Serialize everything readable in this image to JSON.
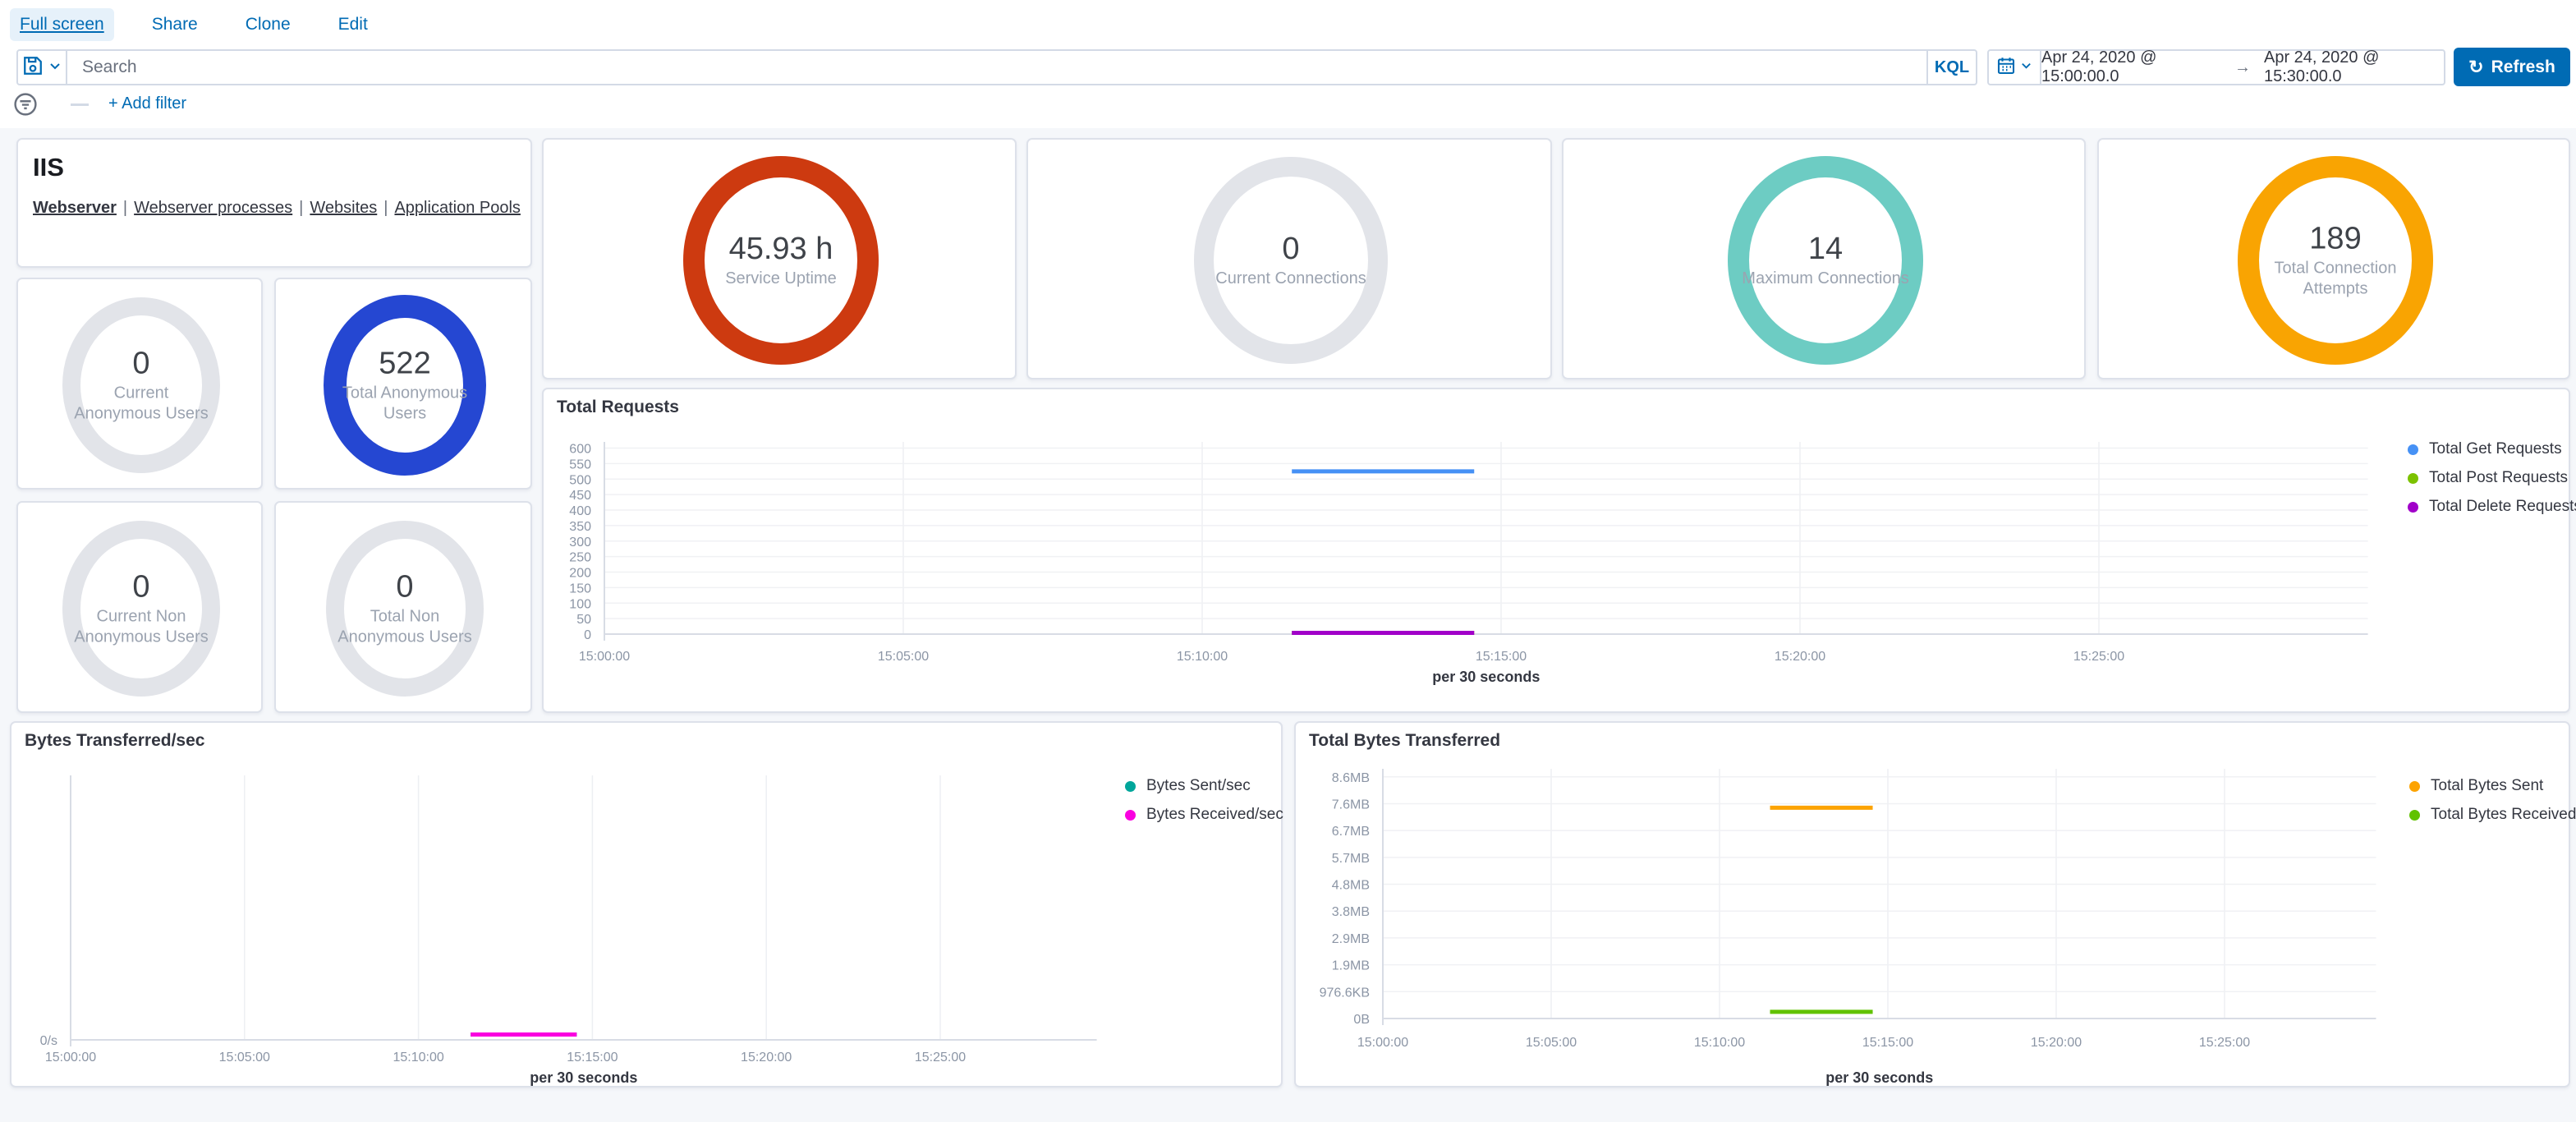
{
  "topnav": {
    "links": [
      {
        "label": "Full screen"
      },
      {
        "label": "Share"
      },
      {
        "label": "Clone"
      },
      {
        "label": "Edit"
      }
    ]
  },
  "query_bar": {
    "search_placeholder": "Search",
    "kql_label": "KQL",
    "date_from": "Apr 24, 2020 @ 15:00:00.0",
    "range_separator": "→",
    "date_to": "Apr 24, 2020 @ 15:30:00.0",
    "refresh_label": "Refresh",
    "refresh_glyph": "↻"
  },
  "filter_bar": {
    "add_filter_label": "+ Add filter"
  },
  "iis_panel": {
    "title": "IIS",
    "separator": "|",
    "links": [
      {
        "label": "Webserver"
      },
      {
        "label": "Webserver processes"
      },
      {
        "label": "Websites"
      },
      {
        "label": "Application Pools"
      }
    ]
  },
  "gauges": [
    {
      "id": "service-uptime",
      "value": "45.93 h",
      "label": "Service Uptime",
      "color": "#cd3a10"
    },
    {
      "id": "current-connections",
      "value": "0",
      "label": "Current Connections",
      "color": "#e2e4e9"
    },
    {
      "id": "maximum-connections",
      "value": "14",
      "label": "Maximum Connections",
      "color": "#6dccc3"
    },
    {
      "id": "total-connection-attempts",
      "value": "189",
      "label": "Total Connection Attempts",
      "color": "#f9a402"
    },
    {
      "id": "current-anonymous-users",
      "value": "0",
      "label": "Current Anonymous Users",
      "color": "#e2e4e9"
    },
    {
      "id": "total-anonymous-users",
      "value": "522",
      "label": "Total Anonymous Users",
      "color": "#2547d2"
    },
    {
      "id": "current-non-anonymous-users",
      "value": "0",
      "label": "Current Non Anonymous Users",
      "color": "#e2e4e9"
    },
    {
      "id": "total-non-anonymous-users",
      "value": "0",
      "label": "Total Non Anonymous Users",
      "color": "#e2e4e9"
    }
  ],
  "chart_data": [
    {
      "id": "total-requests",
      "type": "line",
      "title": "Total Requests",
      "xlabel": "per 30 seconds",
      "x_domain_minutes": [
        0,
        29.5
      ],
      "x_ticks": [
        {
          "t": 0,
          "label": "15:00:00"
        },
        {
          "t": 5,
          "label": "15:05:00"
        },
        {
          "t": 10,
          "label": "15:10:00"
        },
        {
          "t": 15,
          "label": "15:15:00"
        },
        {
          "t": 20,
          "label": "15:20:00"
        },
        {
          "t": 25,
          "label": "15:25:00"
        }
      ],
      "y_domain": [
        0,
        620
      ],
      "y_ticks": [
        {
          "v": 0,
          "label": "0"
        },
        {
          "v": 50,
          "label": "50"
        },
        {
          "v": 100,
          "label": "100"
        },
        {
          "v": 150,
          "label": "150"
        },
        {
          "v": 200,
          "label": "200"
        },
        {
          "v": 250,
          "label": "250"
        },
        {
          "v": 300,
          "label": "300"
        },
        {
          "v": 350,
          "label": "350"
        },
        {
          "v": 400,
          "label": "400"
        },
        {
          "v": 450,
          "label": "450"
        },
        {
          "v": 500,
          "label": "500"
        },
        {
          "v": 550,
          "label": "550"
        },
        {
          "v": 600,
          "label": "600"
        }
      ],
      "legend": [
        {
          "label": "Total Get Requests",
          "color": "#4691f5"
        },
        {
          "label": "Total Post Requests",
          "color": "#7cc200"
        },
        {
          "label": "Total Delete Requests",
          "color": "#a100c9"
        }
      ],
      "series": [
        {
          "name": "Total Get Requests",
          "color": "#4691f5",
          "start_min": 11.5,
          "end_min": 14.55,
          "value": 525
        },
        {
          "name": "Total Post Requests",
          "color": "#7cc200",
          "start_min": 11.5,
          "end_min": 14.55,
          "value": 4
        },
        {
          "name": "Total Delete Requests",
          "color": "#a100c9",
          "start_min": 11.5,
          "end_min": 14.55,
          "value": 4
        }
      ]
    },
    {
      "id": "bytes-transferred-per-sec",
      "type": "line",
      "title": "Bytes Transferred/sec",
      "xlabel": "per 30 seconds",
      "x_domain_minutes": [
        0,
        29.5
      ],
      "x_ticks": [
        {
          "t": 0,
          "label": "15:00:00"
        },
        {
          "t": 5,
          "label": "15:05:00"
        },
        {
          "t": 10,
          "label": "15:10:00"
        },
        {
          "t": 15,
          "label": "15:15:00"
        },
        {
          "t": 20,
          "label": "15:20:00"
        },
        {
          "t": 25,
          "label": "15:25:00"
        }
      ],
      "y_domain": [
        0,
        100
      ],
      "y_ticks": [
        {
          "v": 0,
          "label": "0/s"
        }
      ],
      "legend": [
        {
          "label": "Bytes Sent/sec",
          "color": "#00a69b"
        },
        {
          "label": "Bytes Received/sec",
          "color": "#fa00e0"
        }
      ],
      "series": [
        {
          "name": "Bytes Sent/sec",
          "color": "#00a69b",
          "start_min": 11.5,
          "end_min": 14.55,
          "value": 2
        },
        {
          "name": "Bytes Received/sec",
          "color": "#fa00e0",
          "start_min": 11.5,
          "end_min": 14.55,
          "value": 2
        }
      ]
    },
    {
      "id": "total-bytes-transferred",
      "type": "line",
      "title": "Total Bytes Transferred",
      "xlabel": "per 30 seconds",
      "x_domain_minutes": [
        0,
        29.5
      ],
      "x_ticks": [
        {
          "t": 0,
          "label": "15:00:00"
        },
        {
          "t": 5,
          "label": "15:05:00"
        },
        {
          "t": 10,
          "label": "15:10:00"
        },
        {
          "t": 15,
          "label": "15:15:00"
        },
        {
          "t": 20,
          "label": "15:20:00"
        },
        {
          "t": 25,
          "label": "15:25:00"
        }
      ],
      "y_domain": [
        0,
        9.3
      ],
      "y_unit": "gridline step = 1 decimal MB, labels shown in binary units",
      "y_ticks": [
        {
          "v": 0,
          "label": "0B"
        },
        {
          "v": 1,
          "label": "976.6KB"
        },
        {
          "v": 2,
          "label": "1.9MB"
        },
        {
          "v": 3,
          "label": "2.9MB"
        },
        {
          "v": 4,
          "label": "3.8MB"
        },
        {
          "v": 5,
          "label": "4.8MB"
        },
        {
          "v": 6,
          "label": "5.7MB"
        },
        {
          "v": 7,
          "label": "6.7MB"
        },
        {
          "v": 8,
          "label": "7.6MB"
        },
        {
          "v": 9,
          "label": "8.6MB"
        }
      ],
      "legend": [
        {
          "label": "Total Bytes Sent",
          "color": "#fca302"
        },
        {
          "label": "Total Bytes Received",
          "color": "#61c200"
        }
      ],
      "series": [
        {
          "name": "Total Bytes Sent",
          "color": "#fca302",
          "start_min": 11.5,
          "end_min": 14.55,
          "value": 7.85
        },
        {
          "name": "Total Bytes Received",
          "color": "#61c200",
          "start_min": 11.5,
          "end_min": 14.55,
          "value": 0.25
        }
      ]
    }
  ],
  "colors": {
    "link_blue": "#006BB4",
    "text_dark": "#343741",
    "text_subdued": "#69707d",
    "tick_text": "#8b95a5",
    "panel_border": "#dde1ea",
    "gridline": "#f0f1f4",
    "axis_line": "#d8dce5",
    "page_background": "#f5f7fa",
    "refresh_button": "#006BB4"
  }
}
